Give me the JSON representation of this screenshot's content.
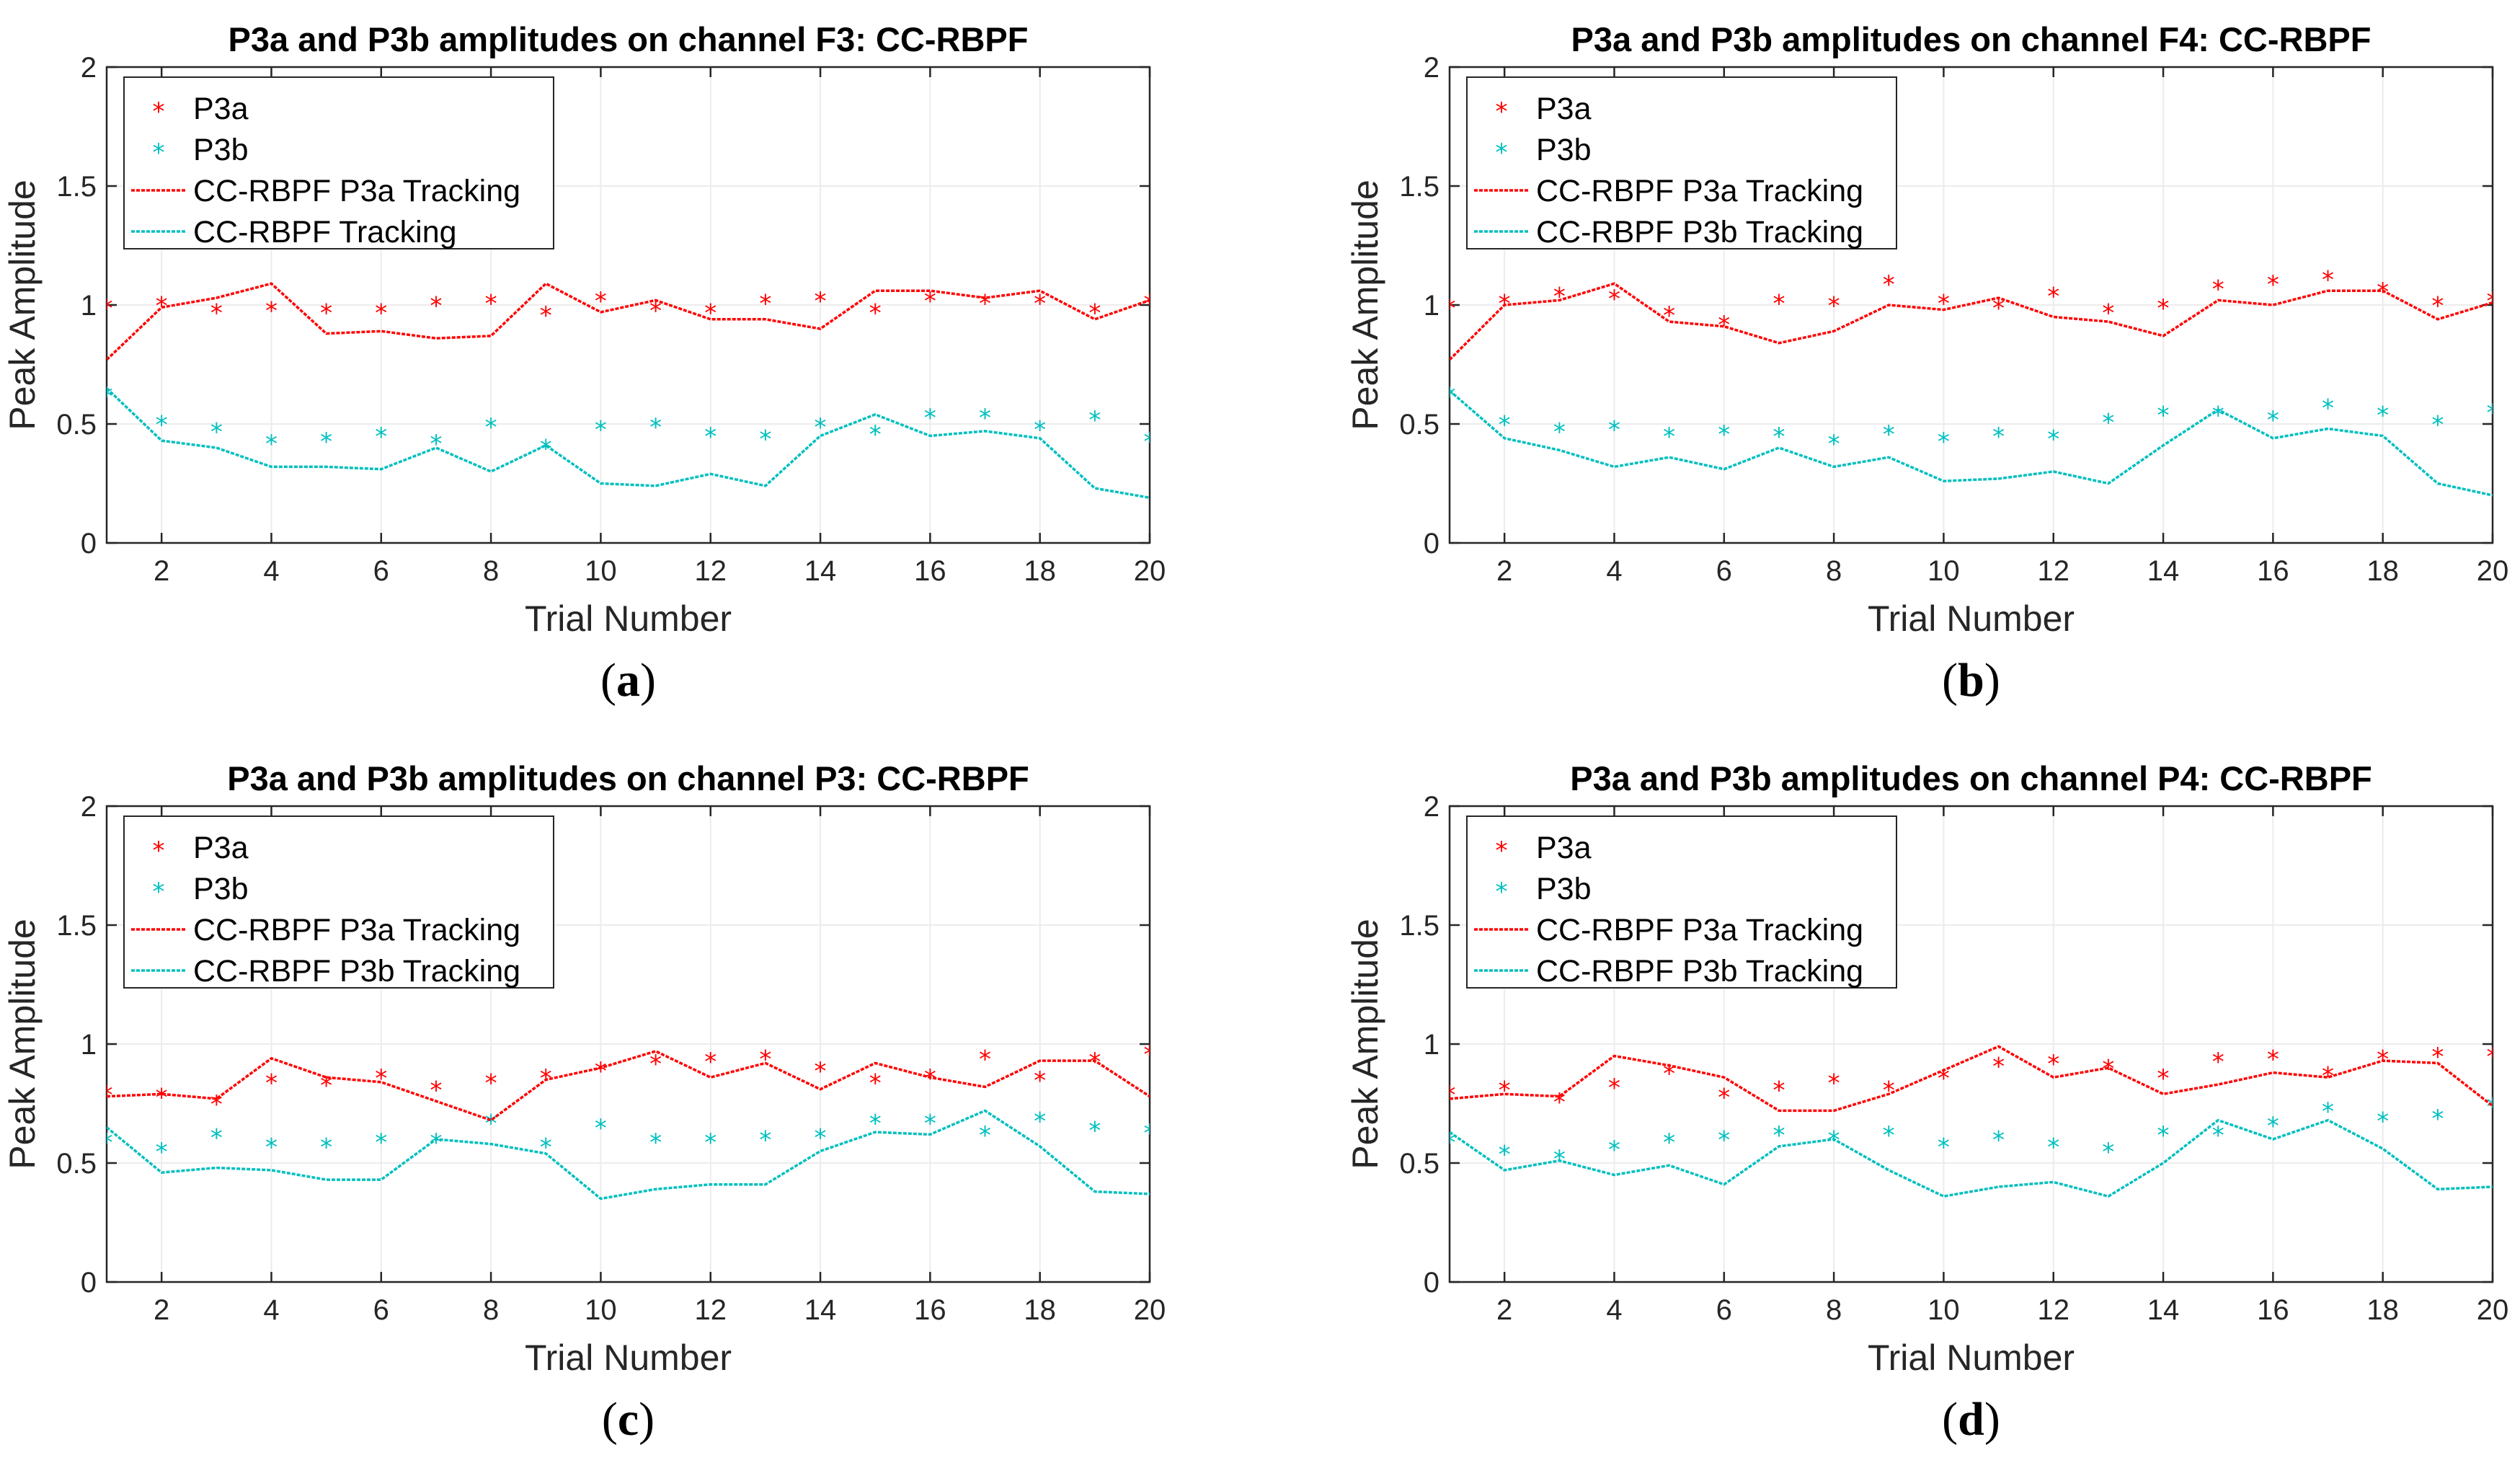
{
  "colors": {
    "p3a": "#ff0000",
    "p3b": "#00bfbf",
    "axis": "#262626",
    "grid": "#ececec"
  },
  "chart_data": [
    {
      "id": "a",
      "panel_label": "a",
      "type": "line",
      "title": "P3a and P3b amplitudes on channel F3: CC-RBPF",
      "xlabel": "Trial Number",
      "ylabel": "Peak Amplitude",
      "xlim": [
        1,
        20
      ],
      "ylim": [
        0,
        2
      ],
      "xticks": [
        2,
        4,
        6,
        8,
        10,
        12,
        14,
        16,
        18,
        20
      ],
      "yticks": [
        0,
        0.5,
        1,
        1.5,
        2
      ],
      "ytick_labels": [
        "0",
        "0.5",
        "1",
        "1.5",
        "2"
      ],
      "x": [
        1,
        2,
        3,
        4,
        5,
        6,
        7,
        8,
        9,
        10,
        11,
        12,
        13,
        14,
        15,
        16,
        17,
        18,
        19,
        20
      ],
      "series": [
        {
          "name": "P3a",
          "kind": "marker",
          "color_key": "p3a",
          "values": [
            1.0,
            1.01,
            0.98,
            0.99,
            0.98,
            0.98,
            1.01,
            1.02,
            0.97,
            1.03,
            0.99,
            0.98,
            1.02,
            1.03,
            0.98,
            1.03,
            1.02,
            1.02,
            0.98,
            1.02
          ]
        },
        {
          "name": "P3b",
          "kind": "marker",
          "color_key": "p3b",
          "values": [
            0.63,
            0.51,
            0.48,
            0.43,
            0.44,
            0.46,
            0.43,
            0.5,
            0.41,
            0.49,
            0.5,
            0.46,
            0.45,
            0.5,
            0.47,
            0.54,
            0.54,
            0.49,
            0.53,
            0.44
          ]
        },
        {
          "name": "CC-RBPF P3a Tracking",
          "kind": "line",
          "color_key": "p3a",
          "values": [
            0.77,
            0.99,
            1.03,
            1.09,
            0.88,
            0.89,
            0.86,
            0.87,
            1.09,
            0.97,
            1.02,
            0.94,
            0.94,
            0.9,
            1.06,
            1.06,
            1.03,
            1.06,
            0.94,
            1.02
          ]
        },
        {
          "name": "CC-RBPF Tracking",
          "kind": "line",
          "color_key": "p3b",
          "values": [
            0.65,
            0.43,
            0.4,
            0.32,
            0.32,
            0.31,
            0.4,
            0.3,
            0.41,
            0.25,
            0.24,
            0.29,
            0.24,
            0.45,
            0.54,
            0.45,
            0.47,
            0.44,
            0.23,
            0.19
          ]
        }
      ]
    },
    {
      "id": "b",
      "panel_label": "b",
      "type": "line",
      "title": "P3a and P3b amplitudes on channel F4: CC-RBPF",
      "xlabel": "Trial Number",
      "ylabel": "Peak Amplitude",
      "xlim": [
        1,
        20
      ],
      "ylim": [
        0,
        2
      ],
      "xticks": [
        2,
        4,
        6,
        8,
        10,
        12,
        14,
        16,
        18,
        20
      ],
      "yticks": [
        0,
        0.5,
        1,
        1.5,
        2
      ],
      "ytick_labels": [
        "0",
        "0.5",
        "1",
        "1.5",
        "2"
      ],
      "x": [
        1,
        2,
        3,
        4,
        5,
        6,
        7,
        8,
        9,
        10,
        11,
        12,
        13,
        14,
        15,
        16,
        17,
        18,
        19,
        20
      ],
      "series": [
        {
          "name": "P3a",
          "kind": "marker",
          "color_key": "p3a",
          "values": [
            1.0,
            1.02,
            1.05,
            1.04,
            0.97,
            0.93,
            1.02,
            1.01,
            1.1,
            1.02,
            1.0,
            1.05,
            0.98,
            1.0,
            1.08,
            1.1,
            1.12,
            1.07,
            1.01,
            1.03
          ]
        },
        {
          "name": "P3b",
          "kind": "marker",
          "color_key": "p3b",
          "values": [
            0.63,
            0.51,
            0.48,
            0.49,
            0.46,
            0.47,
            0.46,
            0.43,
            0.47,
            0.44,
            0.46,
            0.45,
            0.52,
            0.55,
            0.55,
            0.53,
            0.58,
            0.55,
            0.51,
            0.56
          ]
        },
        {
          "name": "CC-RBPF P3a Tracking",
          "kind": "line",
          "color_key": "p3a",
          "values": [
            0.77,
            1.0,
            1.02,
            1.09,
            0.93,
            0.91,
            0.84,
            0.89,
            1.0,
            0.98,
            1.03,
            0.95,
            0.93,
            0.87,
            1.02,
            1.0,
            1.06,
            1.06,
            0.94,
            1.01
          ]
        },
        {
          "name": "CC-RBPF P3b Tracking",
          "kind": "line",
          "color_key": "p3b",
          "values": [
            0.64,
            0.44,
            0.39,
            0.32,
            0.36,
            0.31,
            0.4,
            0.32,
            0.36,
            0.26,
            0.27,
            0.3,
            0.25,
            0.41,
            0.56,
            0.44,
            0.48,
            0.45,
            0.25,
            0.2
          ]
        }
      ]
    },
    {
      "id": "c",
      "panel_label": "c",
      "type": "line",
      "title": "P3a and P3b amplitudes on channel P3: CC-RBPF",
      "xlabel": "Trial Number",
      "ylabel": "Peak Amplitude",
      "xlim": [
        1,
        20
      ],
      "ylim": [
        0,
        2
      ],
      "xticks": [
        2,
        4,
        6,
        8,
        10,
        12,
        14,
        16,
        18,
        20
      ],
      "yticks": [
        0,
        0.5,
        1,
        1.5,
        2
      ],
      "ytick_labels": [
        "0",
        "0.5",
        "1",
        "1.5",
        "2"
      ],
      "x": [
        1,
        2,
        3,
        4,
        5,
        6,
        7,
        8,
        9,
        10,
        11,
        12,
        13,
        14,
        15,
        16,
        17,
        18,
        19,
        20
      ],
      "series": [
        {
          "name": "P3a",
          "kind": "marker",
          "color_key": "p3a",
          "values": [
            0.8,
            0.79,
            0.76,
            0.85,
            0.84,
            0.87,
            0.82,
            0.85,
            0.87,
            0.9,
            0.93,
            0.94,
            0.95,
            0.9,
            0.85,
            0.87,
            0.95,
            0.86,
            0.94,
            0.97
          ]
        },
        {
          "name": "P3b",
          "kind": "marker",
          "color_key": "p3b",
          "values": [
            0.6,
            0.56,
            0.62,
            0.58,
            0.58,
            0.6,
            0.6,
            0.68,
            0.58,
            0.66,
            0.6,
            0.6,
            0.61,
            0.62,
            0.68,
            0.68,
            0.63,
            0.69,
            0.65,
            0.64
          ]
        },
        {
          "name": "CC-RBPF P3a Tracking",
          "kind": "line",
          "color_key": "p3a",
          "values": [
            0.78,
            0.79,
            0.77,
            0.94,
            0.86,
            0.84,
            0.76,
            0.68,
            0.85,
            0.9,
            0.97,
            0.86,
            0.92,
            0.81,
            0.92,
            0.86,
            0.82,
            0.93,
            0.93,
            0.78
          ]
        },
        {
          "name": "CC-RBPF P3b Tracking",
          "kind": "line",
          "color_key": "p3b",
          "values": [
            0.65,
            0.46,
            0.48,
            0.47,
            0.43,
            0.43,
            0.6,
            0.58,
            0.54,
            0.35,
            0.39,
            0.41,
            0.41,
            0.55,
            0.63,
            0.62,
            0.72,
            0.57,
            0.38,
            0.37
          ]
        }
      ]
    },
    {
      "id": "d",
      "panel_label": "d",
      "type": "line",
      "title": "P3a and P3b amplitudes on channel P4: CC-RBPF",
      "xlabel": "Trial Number",
      "ylabel": "Peak Amplitude",
      "xlim": [
        1,
        20
      ],
      "ylim": [
        0,
        2
      ],
      "xticks": [
        2,
        4,
        6,
        8,
        10,
        12,
        14,
        16,
        18,
        20
      ],
      "yticks": [
        0,
        0.5,
        1,
        1.5,
        2
      ],
      "ytick_labels": [
        "0",
        "0.5",
        "1",
        "1.5",
        "2"
      ],
      "x": [
        1,
        2,
        3,
        4,
        5,
        6,
        7,
        8,
        9,
        10,
        11,
        12,
        13,
        14,
        15,
        16,
        17,
        18,
        19,
        20
      ],
      "series": [
        {
          "name": "P3a",
          "kind": "marker",
          "color_key": "p3a",
          "values": [
            0.8,
            0.82,
            0.77,
            0.83,
            0.89,
            0.79,
            0.82,
            0.85,
            0.82,
            0.87,
            0.92,
            0.93,
            0.91,
            0.87,
            0.94,
            0.95,
            0.88,
            0.95,
            0.96,
            0.96
          ]
        },
        {
          "name": "P3b",
          "kind": "marker",
          "color_key": "p3b",
          "values": [
            0.6,
            0.55,
            0.53,
            0.57,
            0.6,
            0.61,
            0.63,
            0.61,
            0.63,
            0.58,
            0.61,
            0.58,
            0.56,
            0.63,
            0.63,
            0.67,
            0.73,
            0.69,
            0.7,
            0.75
          ]
        },
        {
          "name": "CC-RBPF P3a Tracking",
          "kind": "line",
          "color_key": "p3a",
          "values": [
            0.77,
            0.79,
            0.78,
            0.95,
            0.91,
            0.86,
            0.72,
            0.72,
            0.79,
            0.89,
            0.99,
            0.86,
            0.9,
            0.79,
            0.83,
            0.88,
            0.86,
            0.93,
            0.92,
            0.74
          ]
        },
        {
          "name": "CC-RBPF P3b Tracking",
          "kind": "line",
          "color_key": "p3b",
          "values": [
            0.63,
            0.47,
            0.51,
            0.45,
            0.49,
            0.41,
            0.57,
            0.6,
            0.47,
            0.36,
            0.4,
            0.42,
            0.36,
            0.5,
            0.68,
            0.6,
            0.68,
            0.56,
            0.39,
            0.4
          ]
        }
      ]
    }
  ]
}
